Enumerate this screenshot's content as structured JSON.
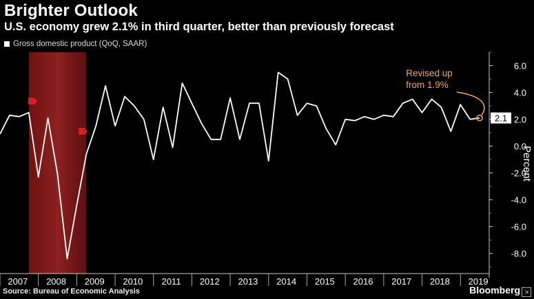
{
  "header": {
    "title": "Brighter Outlook",
    "subtitle": "U.S. economy grew 2.1% in third quarter, better than previously forecast"
  },
  "footer": {
    "source": "Source: Bureau of Economic Analysis",
    "brand": "Bloomberg"
  },
  "colors": {
    "background": "#000000",
    "line": "#ffffff",
    "recession": "#8b1a1a",
    "annotation": "#f5a855",
    "marker": "#d42020"
  },
  "chart_data": {
    "type": "line",
    "legend": "Gross domestic product (QoQ, SAAR)",
    "legend_position": "top-left",
    "ylabel": "Percent",
    "ylim": [
      -9.5,
      7
    ],
    "yticks": [
      "6.0",
      "4.0",
      "2.0",
      "0.0",
      "-2.0",
      "-4.0",
      "-6.0",
      "-8.0"
    ],
    "ytick_values": [
      6,
      4,
      2,
      0,
      -2,
      -4,
      -6,
      -8
    ],
    "xticks": [
      "2007",
      "2008",
      "2009",
      "2010",
      "2011",
      "2012",
      "2013",
      "2014",
      "2015",
      "2016",
      "2017",
      "2018",
      "2019"
    ],
    "x_start_year": 2007,
    "x_end_year": 2019.75,
    "recession_band": [
      2008.0,
      2009.0
    ],
    "grid": false,
    "series": [
      {
        "name": "Gross domestic product (QoQ, SAAR)",
        "x": [
          2007.0,
          2007.25,
          2007.5,
          2007.75,
          2008.0,
          2008.25,
          2008.5,
          2008.75,
          2009.0,
          2009.25,
          2009.5,
          2009.75,
          2010.0,
          2010.25,
          2010.5,
          2010.75,
          2011.0,
          2011.25,
          2011.5,
          2011.75,
          2012.0,
          2012.25,
          2012.5,
          2012.75,
          2013.0,
          2013.25,
          2013.5,
          2013.75,
          2014.0,
          2014.25,
          2014.5,
          2014.75,
          2015.0,
          2015.25,
          2015.5,
          2015.75,
          2016.0,
          2016.25,
          2016.5,
          2016.75,
          2017.0,
          2017.25,
          2017.5,
          2017.75,
          2018.0,
          2018.25,
          2018.5,
          2018.75,
          2019.0,
          2019.25,
          2019.5
        ],
        "values": [
          0.9,
          2.3,
          2.2,
          2.5,
          -2.3,
          2.1,
          -2.1,
          -8.4,
          -4.4,
          -0.6,
          1.5,
          4.5,
          1.5,
          3.7,
          3.0,
          2.0,
          -1.0,
          2.9,
          -0.1,
          4.7,
          3.2,
          1.7,
          0.5,
          0.5,
          3.6,
          0.5,
          3.2,
          3.2,
          -1.1,
          5.5,
          5.0,
          2.3,
          3.2,
          3.0,
          1.3,
          0.1,
          2.0,
          1.9,
          2.2,
          2.0,
          2.3,
          2.2,
          3.2,
          3.5,
          2.5,
          3.5,
          2.9,
          1.1,
          3.1,
          2.0,
          2.1
        ]
      }
    ],
    "last_value_label": "2.1",
    "annotation": {
      "text_line1": "Revised up",
      "text_line2": "from 1.9%"
    }
  }
}
